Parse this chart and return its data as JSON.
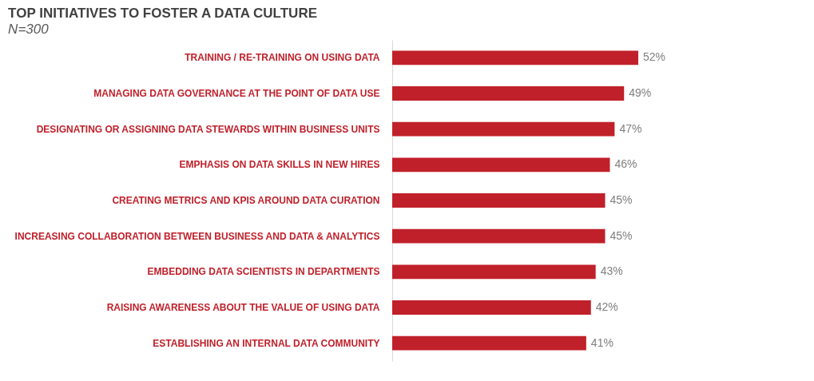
{
  "chart_data": {
    "type": "bar",
    "orientation": "horizontal",
    "title": "TOP INITIATIVES TO FOSTER A DATA CULTURE",
    "subtitle": "N=300",
    "categories": [
      "TRAINING / RE-TRAINING ON USING DATA",
      "MANAGING DATA GOVERNANCE AT THE POINT OF DATA USE",
      "DESIGNATING OR ASSIGNING DATA STEWARDS WITHIN BUSINESS UNITS",
      "EMPHASIS ON DATA SKILLS IN NEW HIRES",
      "CREATING METRICS AND KPIS AROUND DATA CURATION",
      "INCREASING COLLABORATION BETWEEN  BUSINESS AND  DATA & ANALYTICS",
      "EMBEDDING DATA SCIENTISTS IN DEPARTMENTS",
      "RAISING AWARENESS ABOUT THE VALUE OF USING DATA",
      "ESTABLISHING AN INTERNAL DATA COMMUNITY"
    ],
    "values": [
      52,
      49,
      47,
      46,
      45,
      45,
      43,
      42,
      41
    ],
    "value_labels": [
      "52%",
      "49%",
      "47%",
      "46%",
      "45%",
      "45%",
      "43%",
      "42%",
      "41%"
    ],
    "color": "#c0202a"
  }
}
